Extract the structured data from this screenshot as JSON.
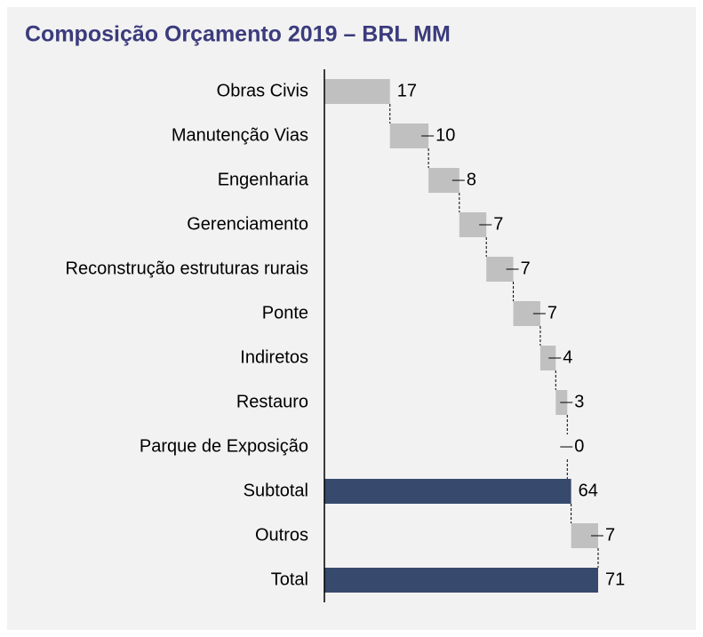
{
  "chart_data": {
    "type": "waterfall",
    "title": "Composição Orçamento 2019 – BRL MM",
    "categories": [
      "Obras Civis",
      "Manutenção Vias",
      "Engenharia",
      "Gerenciamento",
      "Reconstrução estruturas rurais",
      "Ponte",
      "Indiretos",
      "Restauro",
      "Parque de Exposição",
      "Subtotal",
      "Outros",
      "Total"
    ],
    "values": [
      17,
      10,
      8,
      7,
      7,
      7,
      4,
      3,
      0,
      64,
      7,
      71
    ],
    "is_total": [
      false,
      false,
      false,
      false,
      false,
      false,
      false,
      false,
      false,
      true,
      false,
      true
    ],
    "color": "#c0c0c0",
    "total_color": "#374a6d"
  }
}
